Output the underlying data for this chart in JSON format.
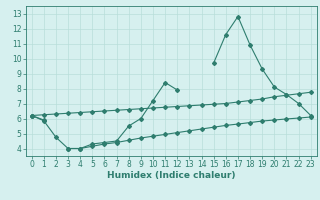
{
  "xlabel": "Humidex (Indice chaleur)",
  "x": [
    0,
    1,
    2,
    3,
    4,
    5,
    6,
    7,
    8,
    9,
    10,
    11,
    12,
    13,
    14,
    15,
    16,
    17,
    18,
    19,
    20,
    21,
    22,
    23
  ],
  "line_main": [
    6.2,
    5.9,
    null,
    4.0,
    4.0,
    4.3,
    4.4,
    4.5,
    5.5,
    6.0,
    7.2,
    8.4,
    7.9,
    null,
    null,
    9.7,
    11.6,
    12.8,
    10.9,
    9.3,
    8.1,
    7.6,
    7.0,
    6.2
  ],
  "line_upper": [
    6.2,
    6.25,
    6.3,
    6.35,
    6.4,
    6.45,
    6.5,
    6.55,
    6.6,
    6.65,
    6.7,
    6.75,
    6.8,
    6.85,
    6.9,
    6.95,
    7.0,
    7.1,
    7.2,
    7.3,
    7.45,
    7.55,
    7.65,
    7.75
  ],
  "line_lower": [
    6.2,
    5.85,
    4.75,
    4.0,
    4.0,
    4.15,
    4.3,
    4.4,
    4.55,
    4.7,
    4.82,
    4.94,
    5.06,
    5.18,
    5.3,
    5.42,
    5.54,
    5.63,
    5.73,
    5.83,
    5.9,
    5.97,
    6.03,
    6.1
  ],
  "line_color": "#2e7d6e",
  "bg_color": "#d6f0ef",
  "grid_color": "#b8deda",
  "ylim": [
    3.5,
    13.5
  ],
  "xlim": [
    -0.5,
    23.5
  ],
  "yticks": [
    4,
    5,
    6,
    7,
    8,
    9,
    10,
    11,
    12,
    13
  ],
  "xticks": [
    0,
    1,
    2,
    3,
    4,
    5,
    6,
    7,
    8,
    9,
    10,
    11,
    12,
    13,
    14,
    15,
    16,
    17,
    18,
    19,
    20,
    21,
    22,
    23
  ],
  "fontsize_label": 6.5,
  "fontsize_tick": 5.5
}
